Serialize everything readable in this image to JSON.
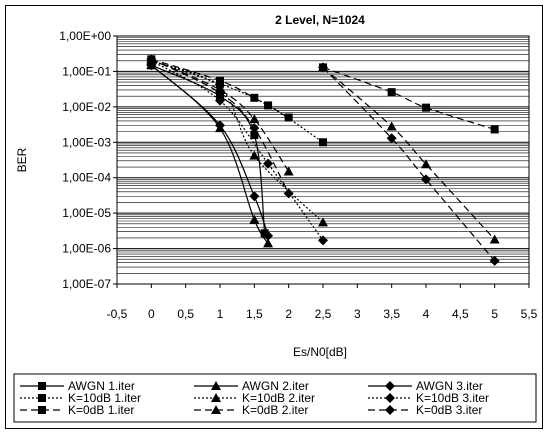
{
  "chart_data": {
    "type": "line",
    "title": "2 Level, N=1024",
    "xlabel": "Es/N0[dB]",
    "ylabel": "BER",
    "yscale": "log",
    "xlim": [
      -0.5,
      5.5
    ],
    "ylim_exponents": [
      -7,
      0
    ],
    "x_ticks": [
      "-0,5",
      "0",
      "0,5",
      "1",
      "1,5",
      "2",
      "2,5",
      "3",
      "3,5",
      "4",
      "4,5",
      "5",
      "5,5"
    ],
    "y_ticks": [
      "1,00E+00",
      "1,00E-01",
      "1,00E-02",
      "1,00E-03",
      "1,00E-04",
      "1,00E-05",
      "1,00E-06",
      "1,00E-07"
    ],
    "grid": "horizontal",
    "legend_position": "bottom",
    "series": [
      {
        "name": "AWGN 1.iter",
        "marker": "square",
        "dash": "solid",
        "x": [
          0,
          1,
          1.5,
          1.65
        ],
        "y": [
          0.15,
          0.02,
          0.0016,
          2.7e-06
        ]
      },
      {
        "name": "AWGN 2.iter",
        "marker": "triangle",
        "dash": "solid",
        "x": [
          0,
          1,
          1.5,
          1.7
        ],
        "y": [
          0.15,
          0.0025,
          6.5e-06,
          1.4e-06
        ]
      },
      {
        "name": "AWGN 3.iter",
        "marker": "diamond",
        "dash": "solid",
        "x": [
          0,
          1,
          1.5,
          1.7
        ],
        "y": [
          0.15,
          0.003,
          3e-05,
          2.3e-06
        ]
      },
      {
        "name": "K=10dB 1.iter",
        "marker": "square",
        "dash": "dotted",
        "x": [
          0,
          1,
          1.7,
          2.5
        ],
        "y": [
          0.2,
          0.045,
          0.011,
          0.001
        ]
      },
      {
        "name": "K=10dB 2.iter",
        "marker": "triangle",
        "dash": "dotted",
        "x": [
          0,
          1,
          1.5,
          2.5
        ],
        "y": [
          0.2,
          0.035,
          0.00042,
          5.5e-06
        ]
      },
      {
        "name": "K=10dB 3.iter",
        "marker": "diamond",
        "dash": "dotted",
        "x": [
          0,
          1,
          1.7,
          2.5
        ],
        "y": [
          0.2,
          0.015,
          0.00025,
          1.7e-06
        ]
      },
      {
        "name": "K=0dB 1.iter",
        "marker": "square",
        "dash": "dashed",
        "x": [
          0,
          1,
          1.5,
          2,
          2.5,
          3.5,
          4,
          5
        ],
        "y": [
          0.22,
          0.055,
          0.018,
          0.005,
          0.13,
          0.026,
          0.0095,
          0.0023
        ]
      },
      {
        "name": "K=0dB 2.iter",
        "marker": "triangle",
        "dash": "dashed",
        "x": [
          0,
          1,
          1.5,
          2,
          2.5,
          3.5,
          4,
          5
        ],
        "y": [
          0.22,
          0.03,
          0.0045,
          0.00015,
          0.13,
          0.0028,
          0.00024,
          1.8e-06
        ]
      },
      {
        "name": "K=0dB 3.iter",
        "marker": "diamond",
        "dash": "dashed",
        "x": [
          0,
          1,
          1.5,
          2,
          2.5,
          3.5,
          4,
          5
        ],
        "y": [
          0.22,
          0.025,
          0.0025,
          3.6e-05,
          0.13,
          0.0013,
          9e-05,
          4.5e-07
        ]
      }
    ]
  }
}
